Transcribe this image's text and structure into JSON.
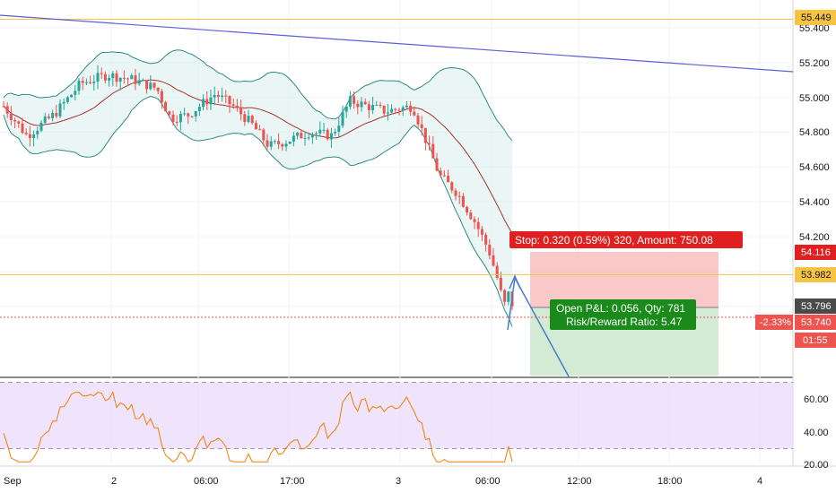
{
  "chart_data": {
    "type": "candlestick",
    "price_axis": {
      "range": [
        54.0,
        55.48
      ],
      "ticks": [
        "55.400",
        "55.200",
        "55.000",
        "54.800",
        "54.600",
        "54.400",
        "54.200"
      ]
    },
    "time_axis": {
      "ticks": [
        "Sep",
        "2",
        "06:00",
        "17:00",
        "3",
        "06:00",
        "12:00",
        "18:00",
        "4"
      ]
    },
    "horizontal_lines": [
      {
        "price": 55.449,
        "label": "55.449",
        "color": "#f6c343"
      },
      {
        "price": 53.982,
        "label": "53.982",
        "color": "#f6c343"
      }
    ],
    "trend_line": {
      "from": 55.449,
      "to": 55.145,
      "color": "#5b5fd9"
    },
    "position": {
      "stop_label": "Stop: 0.320 (0.59%) 320, Amount: 750.08",
      "stop_price_label": "54.116",
      "entry_price_label": "53.796",
      "pnl_line1": "Open P&L: 0.056, Qty: 781",
      "pnl_line2": "Risk/Reward Ratio: 5.47",
      "risk_color": "#f7b7b7",
      "reward_color": "#c8e6c9"
    },
    "current_price": {
      "label": "53.740",
      "change": "-2.33%",
      "countdown": "01:55",
      "color": "#ef5350"
    },
    "rsi": {
      "ticks": [
        "60.00",
        "40.00",
        "20.00"
      ],
      "upper": 70,
      "lower": 30,
      "color": "#f57c00",
      "band_color": "#e8d9fb"
    },
    "colors": {
      "up": "#26a69a",
      "down": "#ef5350",
      "bollinger": "#2e8b7f",
      "basis": "#a83232"
    }
  }
}
